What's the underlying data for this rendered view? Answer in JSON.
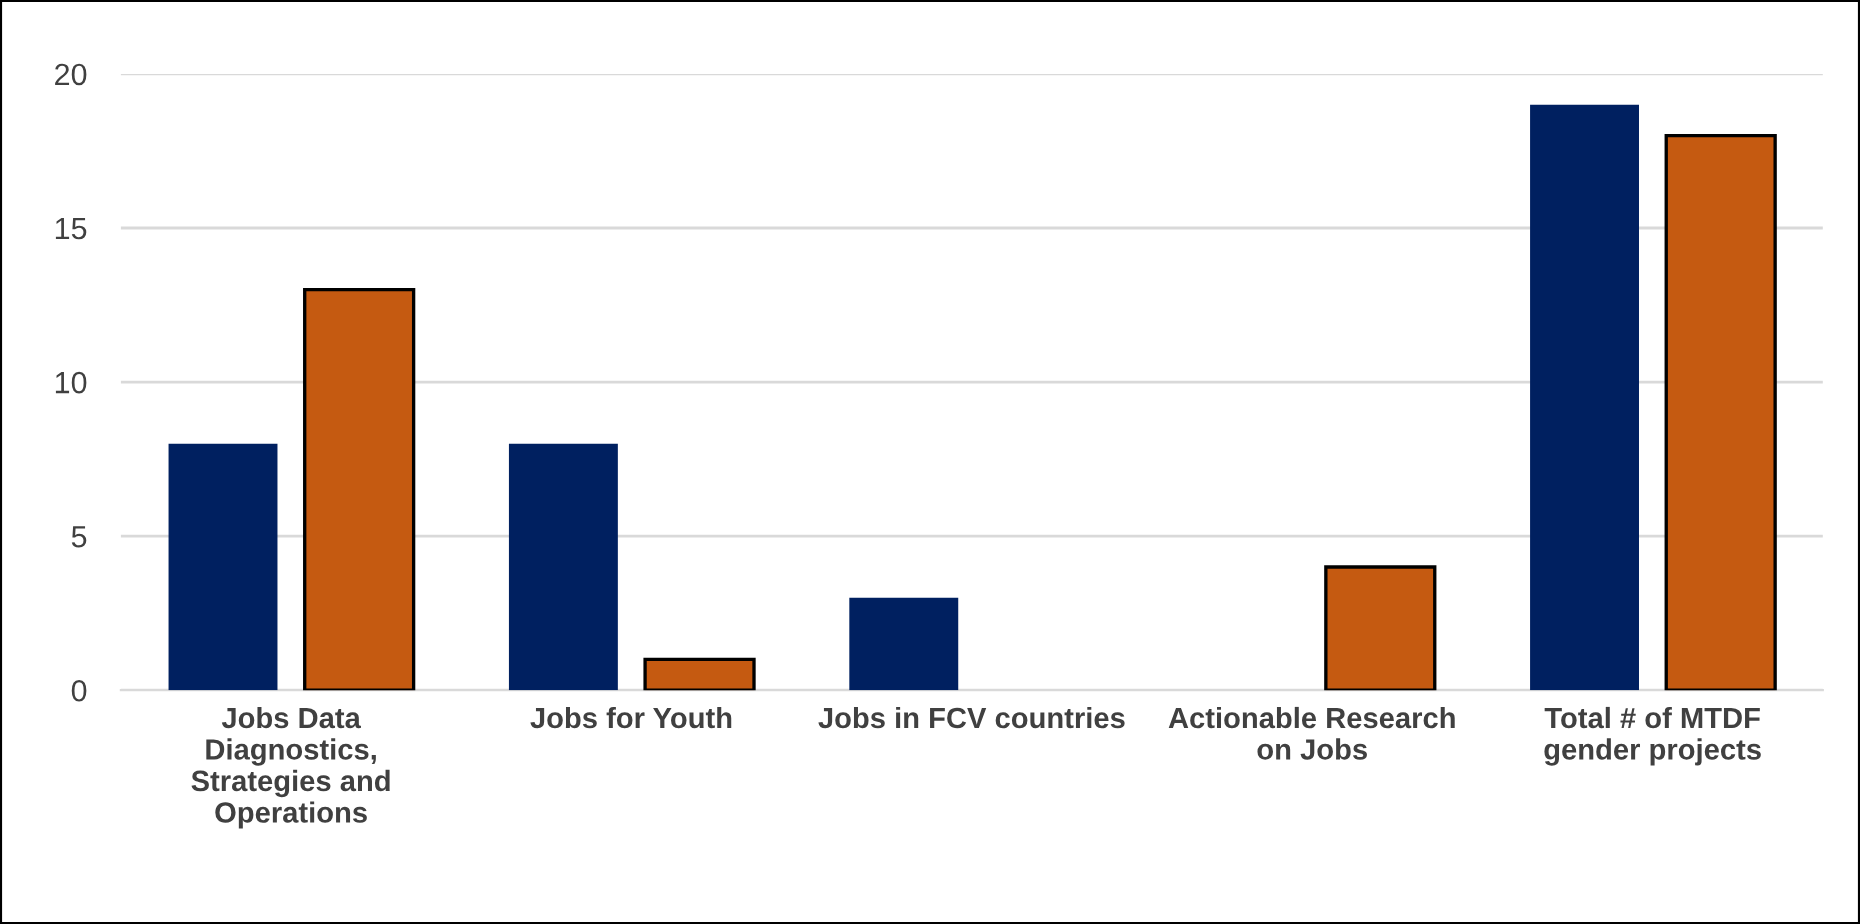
{
  "chart_data": {
    "type": "bar",
    "categories": [
      "Jobs Data\nDiagnostics,\nStrategies and\nOperations",
      "Jobs for Youth",
      "Jobs in FCV countries",
      "Actionable Research\non Jobs",
      "Total # of MTDF\ngender projects"
    ],
    "series": [
      {
        "color": "#002060",
        "values": [
          8,
          8,
          3,
          null,
          19
        ]
      },
      {
        "color": "#c55a11",
        "values": [
          13,
          1,
          null,
          4,
          18
        ]
      }
    ],
    "ylim": [
      0,
      20
    ],
    "yticks": [
      0,
      5,
      10,
      15,
      20
    ],
    "grid": "y",
    "legend": false
  }
}
